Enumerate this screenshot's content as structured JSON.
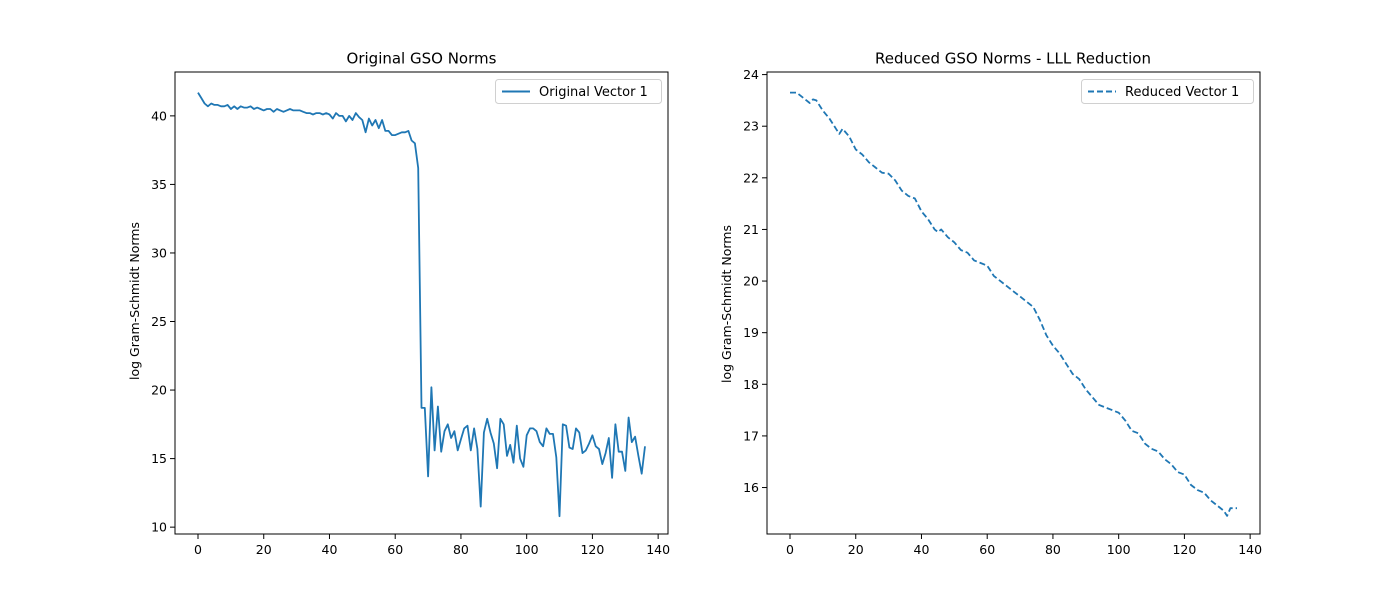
{
  "chart_data": [
    {
      "type": "line",
      "title": "Original GSO Norms",
      "xlabel": "",
      "ylabel": "log Gram-Schmidt Norms",
      "xlim": [
        -7,
        143
      ],
      "ylim": [
        9.5,
        43.2
      ],
      "xticks": [
        0,
        20,
        40,
        60,
        80,
        100,
        120,
        140
      ],
      "yticks": [
        10,
        15,
        20,
        25,
        30,
        35,
        40
      ],
      "grid": false,
      "legend_position": "top-right",
      "series": [
        {
          "name": "Original Vector 1",
          "color": "#1f77b4",
          "style": "solid",
          "x": [
            0,
            1,
            2,
            3,
            4,
            5,
            6,
            7,
            8,
            9,
            10,
            11,
            12,
            13,
            14,
            15,
            16,
            17,
            18,
            19,
            20,
            21,
            22,
            23,
            24,
            25,
            26,
            27,
            28,
            29,
            30,
            31,
            32,
            33,
            34,
            35,
            36,
            37,
            38,
            39,
            40,
            41,
            42,
            43,
            44,
            45,
            46,
            47,
            48,
            49,
            50,
            51,
            52,
            53,
            54,
            55,
            56,
            57,
            58,
            59,
            60,
            61,
            62,
            63,
            64,
            65,
            66,
            67,
            68,
            69,
            70,
            71,
            72,
            73,
            74,
            75,
            76,
            77,
            78,
            79,
            80,
            81,
            82,
            83,
            84,
            85,
            86,
            87,
            88,
            89,
            90,
            91,
            92,
            93,
            94,
            95,
            96,
            97,
            98,
            99,
            100,
            101,
            102,
            103,
            104,
            105,
            106,
            107,
            108,
            109,
            110,
            111,
            112,
            113,
            114,
            115,
            116,
            117,
            118,
            119,
            120,
            121,
            122,
            123,
            124,
            125,
            126,
            127,
            128,
            129,
            130,
            131,
            132,
            133,
            134,
            135,
            136
          ],
          "values": [
            41.7,
            41.3,
            40.9,
            40.7,
            40.9,
            40.8,
            40.8,
            40.7,
            40.7,
            40.8,
            40.5,
            40.7,
            40.5,
            40.7,
            40.6,
            40.6,
            40.7,
            40.5,
            40.6,
            40.5,
            40.4,
            40.5,
            40.5,
            40.3,
            40.5,
            40.4,
            40.3,
            40.4,
            40.5,
            40.4,
            40.4,
            40.4,
            40.3,
            40.2,
            40.2,
            40.1,
            40.2,
            40.2,
            40.1,
            40.2,
            40.1,
            39.8,
            40.2,
            40.0,
            40.0,
            39.6,
            40.0,
            39.7,
            40.2,
            39.9,
            39.7,
            38.8,
            39.8,
            39.3,
            39.7,
            39.1,
            39.7,
            38.9,
            38.9,
            38.6,
            38.6,
            38.7,
            38.8,
            38.8,
            38.9,
            38.2,
            38.0,
            36.2,
            18.7,
            18.7,
            13.7,
            20.2,
            15.6,
            18.8,
            15.5,
            17.0,
            17.5,
            16.5,
            17.0,
            15.6,
            16.4,
            17.2,
            17.4,
            15.6,
            17.2,
            15.7,
            11.5,
            16.9,
            17.9,
            16.9,
            16.1,
            14.3,
            17.9,
            17.5,
            15.2,
            16.0,
            14.7,
            17.4,
            15.0,
            14.4,
            16.7,
            17.2,
            17.2,
            17.0,
            16.2,
            15.9,
            17.2,
            16.8,
            16.8,
            15.1,
            10.8,
            17.5,
            17.4,
            15.8,
            15.7,
            17.2,
            16.9,
            15.4,
            15.6,
            16.1,
            16.7,
            15.9,
            15.7,
            14.6,
            15.4,
            16.5,
            13.6,
            17.5,
            15.5,
            15.5,
            14.1,
            18.0,
            16.2,
            16.6,
            15.2,
            13.9,
            15.9
          ]
        }
      ]
    },
    {
      "type": "line",
      "title": "Reduced GSO Norms - LLL Reduction",
      "xlabel": "",
      "ylabel": "log Gram-Schmidt Norms",
      "xlim": [
        -7,
        143
      ],
      "ylim": [
        15.1,
        24.05
      ],
      "xticks": [
        0,
        20,
        40,
        60,
        80,
        100,
        120,
        140
      ],
      "yticks": [
        16,
        17,
        18,
        19,
        20,
        21,
        22,
        23,
        24
      ],
      "grid": false,
      "legend_position": "top-right",
      "series": [
        {
          "name": "Reduced Vector 1",
          "color": "#1f77b4",
          "style": "dashed",
          "x": [
            0,
            2,
            4,
            6,
            7,
            8,
            10,
            12,
            14,
            15,
            16,
            18,
            20,
            22,
            24,
            26,
            28,
            30,
            32,
            34,
            36,
            38,
            40,
            42,
            44,
            45,
            46,
            48,
            50,
            52,
            54,
            56,
            58,
            60,
            62,
            64,
            66,
            68,
            70,
            72,
            74,
            76,
            78,
            80,
            82,
            84,
            86,
            88,
            90,
            92,
            94,
            96,
            98,
            100,
            102,
            104,
            106,
            108,
            110,
            112,
            114,
            116,
            118,
            120,
            122,
            123,
            124,
            126,
            128,
            130,
            132,
            133,
            134,
            136
          ],
          "values": [
            23.65,
            23.65,
            23.55,
            23.45,
            23.52,
            23.5,
            23.3,
            23.15,
            22.95,
            22.85,
            22.95,
            22.8,
            22.55,
            22.45,
            22.3,
            22.2,
            22.1,
            22.08,
            21.95,
            21.75,
            21.65,
            21.6,
            21.35,
            21.2,
            21.0,
            20.95,
            21.0,
            20.85,
            20.75,
            20.6,
            20.55,
            20.4,
            20.35,
            20.3,
            20.1,
            20.0,
            19.9,
            19.8,
            19.7,
            19.6,
            19.5,
            19.25,
            18.95,
            18.75,
            18.6,
            18.4,
            18.2,
            18.1,
            17.9,
            17.75,
            17.6,
            17.55,
            17.5,
            17.45,
            17.3,
            17.1,
            17.05,
            16.85,
            16.75,
            16.7,
            16.55,
            16.45,
            16.3,
            16.25,
            16.05,
            16.0,
            15.95,
            15.9,
            15.75,
            15.65,
            15.55,
            15.45,
            15.6,
            15.6
          ]
        }
      ]
    }
  ]
}
